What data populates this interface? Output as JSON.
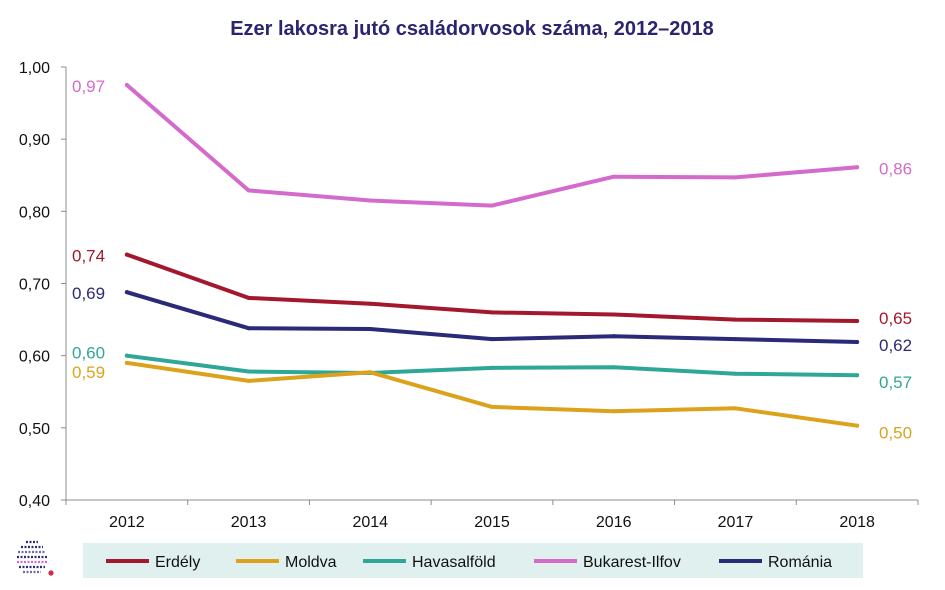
{
  "chart_data": {
    "type": "line",
    "title": "Ezer lakosra jutó családorvosok száma, 2012–2018",
    "xlabel": "",
    "ylabel": "",
    "categories": [
      "2012",
      "2013",
      "2014",
      "2015",
      "2016",
      "2017",
      "2018"
    ],
    "ylim": [
      0.4,
      1.0
    ],
    "yticks": [
      "0,40",
      "0,50",
      "0,60",
      "0,70",
      "0,80",
      "0,90",
      "1,00"
    ],
    "grid": false,
    "legend_position": "bottom",
    "series": [
      {
        "name": "Erdély",
        "color": "#a3182c",
        "values": [
          0.74,
          0.68,
          0.672,
          0.66,
          0.657,
          0.65,
          0.648
        ],
        "first_label": "0,74",
        "last_label": "0,65"
      },
      {
        "name": "Moldva",
        "color": "#dca21c",
        "values": [
          0.59,
          0.565,
          0.577,
          0.529,
          0.523,
          0.527,
          0.503
        ],
        "first_label": "0,59",
        "last_label": "0,50"
      },
      {
        "name": "Havasalföld",
        "color": "#2fa796",
        "values": [
          0.6,
          0.578,
          0.576,
          0.583,
          0.584,
          0.575,
          0.573
        ],
        "first_label": "0,60",
        "last_label": "0,57"
      },
      {
        "name": "Bukarest-Ilfov",
        "color": "#d46bcc",
        "values": [
          0.975,
          0.829,
          0.815,
          0.808,
          0.848,
          0.847,
          0.861
        ],
        "first_label": "0,97",
        "last_label": "0,86"
      },
      {
        "name": "Románia",
        "color": "#2b2a78",
        "values": [
          0.688,
          0.638,
          0.637,
          0.623,
          0.627,
          0.623,
          0.619
        ],
        "first_label": "0,69",
        "last_label": "0,62"
      }
    ]
  },
  "legend": {
    "background": "#dff0ee"
  },
  "logo": {
    "name": "logo-icon"
  }
}
